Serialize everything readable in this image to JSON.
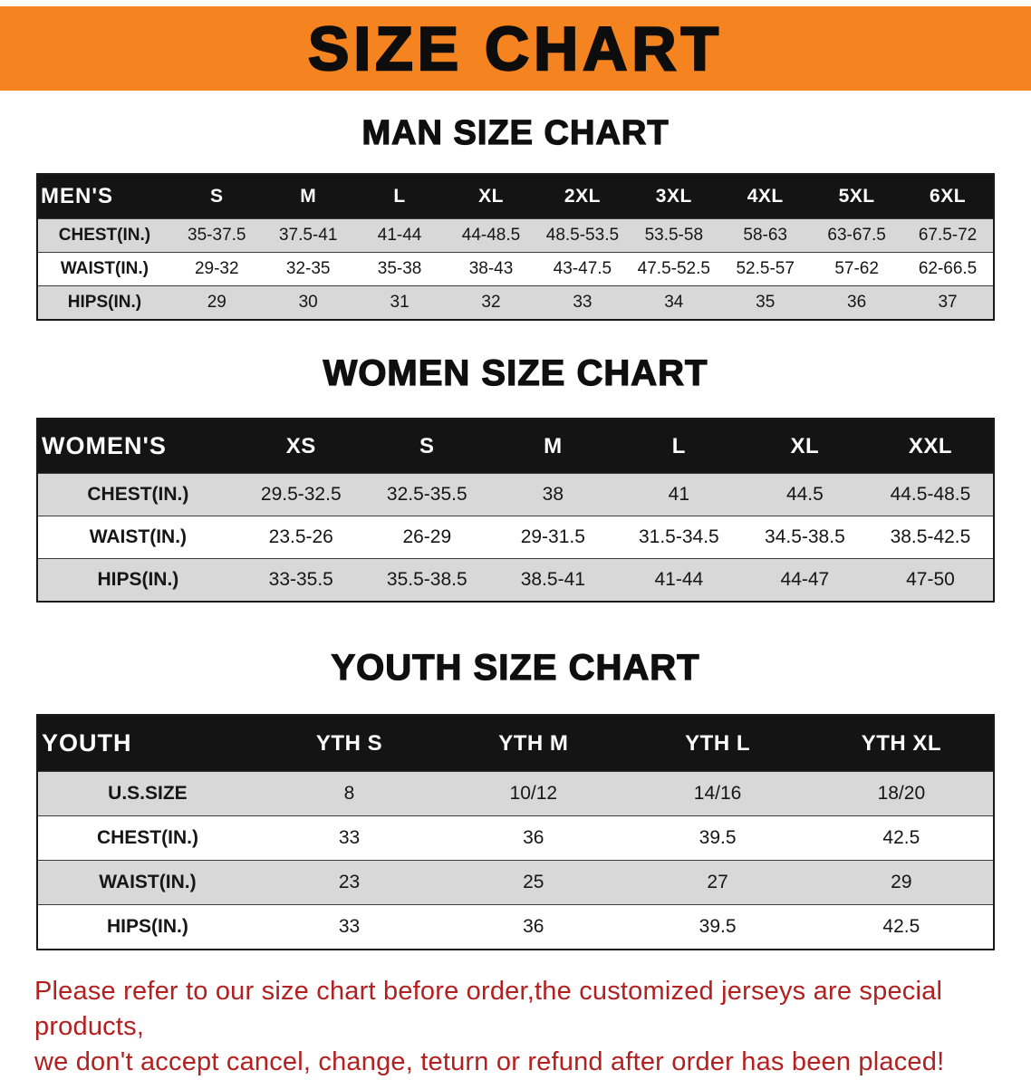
{
  "banner": {
    "title": "SIZE CHART"
  },
  "colors": {
    "banner_bg": "#f5831f",
    "header_bg": "#141414",
    "row_shade": "#d8d8d8",
    "disclaimer_text": "#b22020"
  },
  "sections": [
    {
      "id": "men",
      "heading": "MAN SIZE CHART",
      "table": {
        "header": [
          "MEN'S",
          "S",
          "M",
          "L",
          "XL",
          "2XL",
          "3XL",
          "4XL",
          "5XL",
          "6XL"
        ],
        "rows": [
          {
            "label": "CHEST(IN.)",
            "values": [
              "35-37.5",
              "37.5-41",
              "41-44",
              "44-48.5",
              "48.5-53.5",
              "53.5-58",
              "58-63",
              "63-67.5",
              "67.5-72"
            ]
          },
          {
            "label": "WAIST(IN.)",
            "values": [
              "29-32",
              "32-35",
              "35-38",
              "38-43",
              "43-47.5",
              "47.5-52.5",
              "52.5-57",
              "57-62",
              "62-66.5"
            ]
          },
          {
            "label": "HIPS(IN.)",
            "values": [
              "29",
              "30",
              "31",
              "32",
              "33",
              "34",
              "35",
              "36",
              "37"
            ]
          }
        ]
      }
    },
    {
      "id": "women",
      "heading": "WOMEN SIZE CHART",
      "table": {
        "header": [
          "WOMEN'S",
          "XS",
          "S",
          "M",
          "L",
          "XL",
          "XXL"
        ],
        "rows": [
          {
            "label": "CHEST(IN.)",
            "values": [
              "29.5-32.5",
              "32.5-35.5",
              "38",
              "41",
              "44.5",
              "44.5-48.5"
            ]
          },
          {
            "label": "WAIST(IN.)",
            "values": [
              "23.5-26",
              "26-29",
              "29-31.5",
              "31.5-34.5",
              "34.5-38.5",
              "38.5-42.5"
            ]
          },
          {
            "label": "HIPS(IN.)",
            "values": [
              "33-35.5",
              "35.5-38.5",
              "38.5-41",
              "41-44",
              "44-47",
              "47-50"
            ]
          }
        ]
      }
    },
    {
      "id": "youth",
      "heading": "YOUTH SIZE CHART",
      "table": {
        "header": [
          "YOUTH",
          "YTH S",
          "YTH M",
          "YTH L",
          "YTH XL"
        ],
        "rows": [
          {
            "label": "U.S.SIZE",
            "values": [
              "8",
              "10/12",
              "14/16",
              "18/20"
            ]
          },
          {
            "label": "CHEST(IN.)",
            "values": [
              "33",
              "36",
              "39.5",
              "42.5"
            ]
          },
          {
            "label": "WAIST(IN.)",
            "values": [
              "23",
              "25",
              "27",
              "29"
            ]
          },
          {
            "label": "HIPS(IN.)",
            "values": [
              "33",
              "36",
              "39.5",
              "42.5"
            ]
          }
        ]
      }
    }
  ],
  "footer": {
    "line1": "Please refer to our size chart before order,the customized jerseys are special products,",
    "line2": "we don't accept cancel, change, teturn or refund after order has been placed!"
  }
}
